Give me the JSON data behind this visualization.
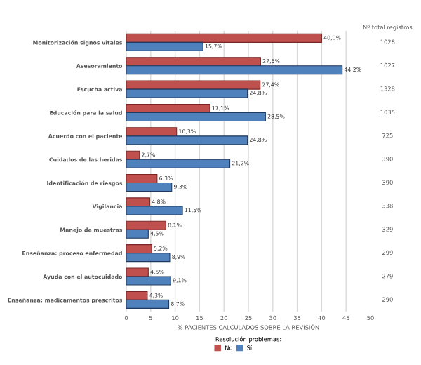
{
  "chart_data": {
    "type": "bar",
    "orientation": "horizontal",
    "categories": [
      "Monitorización signos vitales",
      "Asesoramiento",
      "Escucha activa",
      "Educación para la salud",
      "Acuerdo con el paciente",
      "Cuidados de las heridas",
      "Identificación de riesgos",
      "Vigilancia",
      "Manejo de muestras",
      "Enseñanza: proceso enfermedad",
      "Ayuda con el autocuidado",
      "Enseñanza: medicamentos prescritos"
    ],
    "series": [
      {
        "name": "No",
        "color": "#c0504d",
        "values": [
          40.0,
          27.5,
          27.4,
          17.1,
          10.3,
          2.7,
          6.3,
          4.8,
          8.1,
          5.2,
          4.5,
          4.3
        ],
        "value_labels": [
          "40,0%",
          "27,5%",
          "27,4%",
          "17,1%",
          "10,3%",
          "2,7%",
          "6,3%",
          "4,8%",
          "8,1%",
          "5,2%",
          "4,5%",
          "4,3%"
        ]
      },
      {
        "name": "Sí",
        "color": "#4f81bd",
        "values": [
          15.7,
          44.2,
          24.8,
          28.5,
          24.8,
          21.2,
          9.3,
          11.5,
          4.5,
          8.9,
          9.1,
          8.7
        ],
        "value_labels": [
          "15,7%",
          "44,2%",
          "24,8%",
          "28,5%",
          "24,8%",
          "21,2%",
          "9,3%",
          "11,5%",
          "4,5%",
          "8,9%",
          "9,1%",
          "8,7%"
        ]
      }
    ],
    "xlim": [
      0,
      50
    ],
    "xticks": [
      0,
      5,
      10,
      15,
      20,
      25,
      30,
      35,
      40,
      45,
      50
    ],
    "xlabel": "% PACIENTES CALCULADOS SOBRE LA REVISIÓN",
    "legend_title": "Resolución problemas:",
    "legend": "bottom",
    "grid": "x",
    "annotations": [
      "Nº total registros",
      "1028",
      "1027",
      "1328",
      "1035",
      "725",
      "390",
      "390",
      "338",
      "329",
      "299",
      "279",
      "290"
    ]
  }
}
